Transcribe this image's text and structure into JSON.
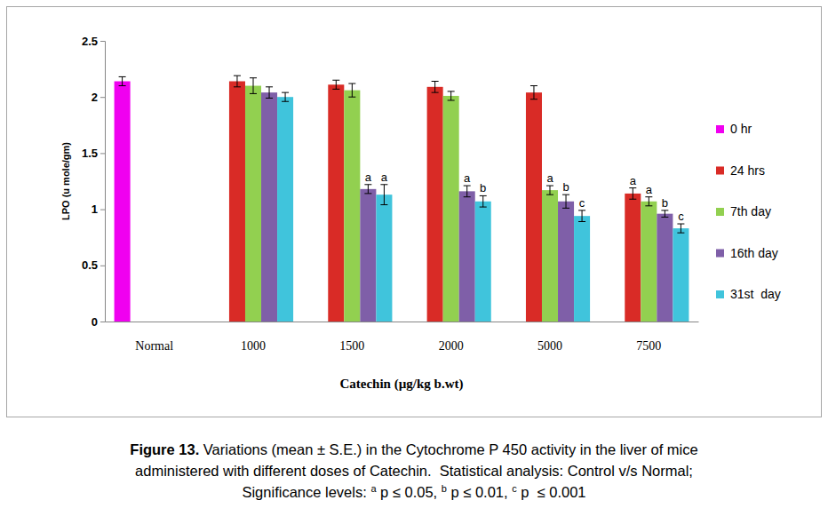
{
  "chart_data": {
    "type": "bar",
    "x_label": "Catechin (µg/kg b.wt)",
    "y_label": "LPO (u mole/gm)",
    "categories": [
      "Normal",
      "1000",
      "1500",
      "2000",
      "5000",
      "7500"
    ],
    "ylim": [
      0,
      2.5
    ],
    "yticks": [
      0,
      0.5,
      1,
      1.5,
      2,
      2.5
    ],
    "grid": false,
    "legend": "right",
    "series": [
      {
        "name": "0 hr",
        "color": "#f000f0",
        "values": [
          2.14,
          null,
          null,
          null,
          null,
          null
        ],
        "errors": [
          0.04,
          null,
          null,
          null,
          null,
          null
        ],
        "annotations": [
          null,
          null,
          null,
          null,
          null,
          null
        ]
      },
      {
        "name": "24 hrs",
        "color": "#d92b26",
        "values": [
          null,
          2.14,
          2.11,
          2.09,
          2.04,
          1.14
        ],
        "errors": [
          null,
          0.05,
          0.04,
          0.05,
          0.06,
          0.05
        ],
        "annotations": [
          null,
          null,
          null,
          null,
          null,
          "a"
        ]
      },
      {
        "name": "7th day",
        "color": "#92d050",
        "values": [
          null,
          2.1,
          2.06,
          2.01,
          1.17,
          1.07
        ],
        "errors": [
          null,
          0.07,
          0.06,
          0.04,
          0.04,
          0.04
        ],
        "annotations": [
          null,
          null,
          null,
          null,
          "a",
          "a"
        ]
      },
      {
        "name": "16th day",
        "color": "#7f5fa8",
        "values": [
          null,
          2.04,
          1.18,
          1.16,
          1.07,
          0.96
        ],
        "errors": [
          null,
          0.05,
          0.04,
          0.05,
          0.06,
          0.03
        ],
        "annotations": [
          null,
          null,
          "a",
          "a",
          "b",
          "b"
        ]
      },
      {
        "name": "31st  day",
        "color": "#40c4dc",
        "values": [
          null,
          2.0,
          1.13,
          1.07,
          0.94,
          0.83
        ],
        "errors": [
          null,
          0.04,
          0.09,
          0.05,
          0.05,
          0.04
        ],
        "annotations": [
          null,
          null,
          "a",
          "b",
          "c",
          "c"
        ]
      }
    ]
  },
  "caption": {
    "label": "Figure 13.",
    "lines": [
      "Variations (mean ± S.E.) in the Cytochrome P 450 activity in the liver of mice",
      "administered with different doses of Catechin.  Statistical analysis: Control v/s Normal;"
    ],
    "significance_prefix": "Significance levels:",
    "significance": [
      {
        "symbol": "a",
        "text": "p ≤ 0.05,"
      },
      {
        "symbol": "b",
        "text": "p ≤ 0.01,"
      },
      {
        "symbol": "c",
        "text": "p  ≤ 0.001"
      }
    ]
  }
}
